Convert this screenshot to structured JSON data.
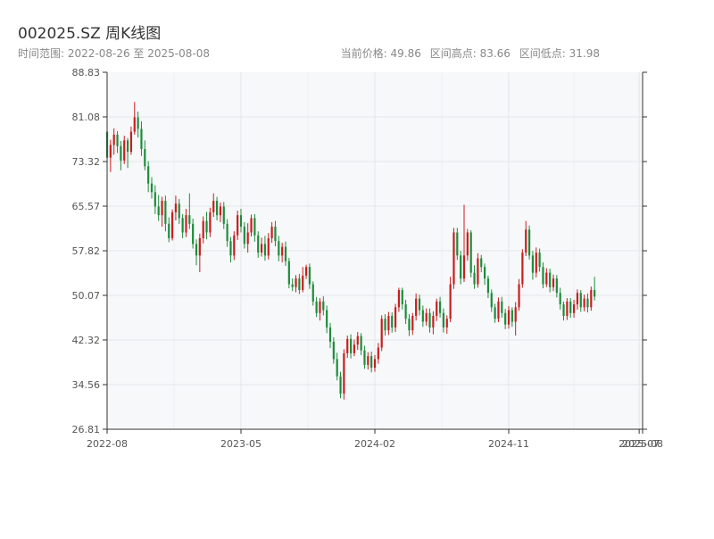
{
  "header": {
    "title": "002025.SZ 周K线图",
    "range_text": "时间范围: 2022-08-26 至 2025-08-08",
    "current_price": "当前价格: 49.86",
    "range_high": "区间高点: 83.66",
    "range_low": "区间低点: 31.98"
  },
  "chart_data": {
    "type": "candlestick",
    "title": "002025.SZ 周K线图",
    "ylim": [
      26.81,
      88.83
    ],
    "y_ticks": [
      "26.81",
      "34.56",
      "42.32",
      "50.07",
      "57.82",
      "65.57",
      "73.32",
      "81.08",
      "88.83"
    ],
    "x_ticks": [
      "2022-08",
      "2023-05",
      "2024-02",
      "2024-11",
      "2025-07",
      "2025-08"
    ],
    "x_tick_weeks": [
      0,
      39,
      78,
      117,
      155,
      156
    ],
    "up_color": "#c81e1e",
    "down_color": "#1e8c3c",
    "grid": true,
    "candles": [
      [
        78.5,
        74.0,
        79.2,
        72.5
      ],
      [
        74.0,
        76.2,
        77.1,
        71.5
      ],
      [
        76.2,
        78.0,
        79.1,
        74.5
      ],
      [
        78.0,
        76.0,
        78.6,
        74.8
      ],
      [
        76.0,
        73.5,
        76.9,
        71.8
      ],
      [
        73.5,
        77.0,
        77.8,
        72.9
      ],
      [
        77.0,
        75.0,
        77.4,
        72.2
      ],
      [
        75.0,
        78.5,
        79.4,
        74.5
      ],
      [
        78.5,
        81.0,
        83.66,
        78.0
      ],
      [
        81.0,
        79.0,
        82.0,
        77.5
      ],
      [
        79.0,
        75.5,
        80.3,
        74.3
      ],
      [
        75.5,
        72.5,
        77.0,
        71.8
      ],
      [
        72.5,
        69.5,
        73.4,
        68.0
      ],
      [
        69.5,
        68.0,
        70.6,
        66.9
      ],
      [
        68.0,
        65.5,
        69.2,
        64.2
      ],
      [
        65.5,
        64.0,
        67.5,
        63.0
      ],
      [
        64.0,
        66.5,
        67.2,
        62.0
      ],
      [
        66.5,
        62.5,
        67.4,
        61.2
      ],
      [
        62.5,
        60.0,
        63.6,
        59.3
      ],
      [
        60.0,
        64.5,
        65.0,
        59.6
      ],
      [
        64.5,
        66.0,
        67.4,
        63.1
      ],
      [
        66.0,
        63.5,
        66.8,
        62.5
      ],
      [
        63.5,
        61.0,
        64.2,
        60.0
      ],
      [
        61.0,
        64.0,
        65.1,
        60.2
      ],
      [
        64.0,
        62.5,
        67.8,
        61.6
      ],
      [
        62.5,
        59.0,
        63.4,
        58.2
      ],
      [
        59.0,
        57.0,
        59.8,
        55.3
      ],
      [
        57.0,
        60.0,
        60.8,
        54.1
      ],
      [
        60.0,
        63.0,
        63.8,
        59.1
      ],
      [
        63.0,
        61.0,
        64.6,
        59.8
      ],
      [
        61.0,
        64.5,
        65.3,
        60.2
      ],
      [
        64.5,
        66.5,
        67.8,
        63.7
      ],
      [
        66.5,
        64.0,
        67.2,
        63.1
      ],
      [
        64.0,
        65.5,
        66.2,
        62.8
      ],
      [
        65.5,
        62.5,
        66.3,
        61.6
      ],
      [
        62.5,
        59.5,
        63.3,
        58.5
      ],
      [
        59.5,
        57.0,
        60.2,
        55.8
      ],
      [
        57.0,
        60.5,
        61.2,
        56.2
      ],
      [
        60.5,
        64.0,
        64.8,
        59.7
      ],
      [
        64.0,
        62.0,
        65.1,
        61.0
      ],
      [
        62.0,
        59.0,
        62.8,
        58.2
      ],
      [
        59.0,
        61.0,
        62.6,
        57.5
      ],
      [
        61.0,
        63.5,
        64.1,
        60.3
      ],
      [
        63.5,
        60.5,
        64.2,
        59.4
      ],
      [
        60.5,
        57.5,
        61.2,
        56.6
      ],
      [
        57.5,
        59.0,
        60.1,
        56.8
      ],
      [
        59.0,
        57.0,
        60.4,
        56.1
      ],
      [
        57.0,
        60.0,
        60.9,
        56.3
      ],
      [
        60.0,
        62.0,
        62.8,
        59.2
      ],
      [
        62.0,
        59.5,
        63.0,
        58.6
      ],
      [
        59.5,
        57.0,
        60.4,
        56.0
      ],
      [
        57.0,
        58.5,
        59.2,
        55.8
      ],
      [
        58.5,
        56.0,
        59.4,
        55.2
      ],
      [
        56.0,
        52.0,
        56.6,
        51.3
      ],
      [
        52.0,
        51.5,
        53.0,
        50.8
      ],
      [
        51.5,
        53.0,
        53.6,
        50.6
      ],
      [
        53.0,
        51.0,
        53.8,
        50.3
      ],
      [
        51.0,
        53.5,
        55.0,
        50.6
      ],
      [
        53.5,
        55.0,
        55.4,
        52.9
      ],
      [
        55.0,
        52.0,
        55.6,
        51.2
      ],
      [
        52.0,
        49.0,
        52.5,
        48.3
      ],
      [
        49.0,
        47.0,
        49.8,
        46.3
      ],
      [
        47.0,
        49.0,
        49.6,
        45.7
      ],
      [
        49.0,
        47.5,
        49.9,
        46.6
      ],
      [
        47.5,
        44.5,
        48.3,
        43.5
      ],
      [
        44.5,
        42.0,
        45.3,
        40.9
      ],
      [
        42.0,
        39.0,
        42.8,
        38.2
      ],
      [
        39.0,
        36.0,
        40.1,
        35.3
      ],
      [
        36.0,
        33.0,
        36.8,
        32.2
      ],
      [
        33.0,
        40.0,
        40.7,
        31.98
      ],
      [
        40.0,
        42.5,
        43.1,
        39.2
      ],
      [
        42.5,
        40.0,
        43.3,
        39.1
      ],
      [
        40.0,
        41.5,
        42.4,
        39.5
      ],
      [
        41.5,
        43.0,
        43.7,
        40.6
      ],
      [
        43.0,
        40.5,
        43.5,
        39.7
      ],
      [
        40.5,
        38.0,
        41.3,
        37.3
      ],
      [
        38.0,
        39.5,
        40.2,
        37.2
      ],
      [
        39.5,
        37.5,
        40.3,
        36.7
      ],
      [
        37.5,
        39.0,
        39.7,
        36.8
      ],
      [
        39.0,
        41.0,
        41.8,
        38.2
      ],
      [
        41.0,
        46.0,
        46.6,
        40.4
      ],
      [
        46.0,
        44.0,
        46.8,
        43.1
      ],
      [
        44.0,
        46.5,
        47.2,
        43.2
      ],
      [
        46.5,
        44.5,
        47.1,
        43.6
      ],
      [
        44.5,
        48.0,
        48.6,
        43.7
      ],
      [
        48.0,
        51.0,
        51.4,
        47.2
      ],
      [
        51.0,
        48.5,
        51.4,
        47.6
      ],
      [
        48.5,
        46.0,
        49.3,
        45.1
      ],
      [
        46.0,
        44.0,
        46.8,
        43.0
      ],
      [
        44.0,
        46.5,
        47.0,
        43.2
      ],
      [
        46.5,
        49.5,
        50.4,
        45.7
      ],
      [
        49.5,
        47.5,
        50.2,
        46.6
      ],
      [
        47.5,
        45.5,
        48.3,
        44.6
      ],
      [
        45.5,
        47.0,
        47.8,
        44.8
      ],
      [
        47.0,
        44.5,
        47.8,
        43.6
      ],
      [
        44.5,
        46.5,
        47.3,
        43.3
      ],
      [
        46.5,
        49.0,
        49.5,
        45.6
      ],
      [
        49.0,
        47.0,
        49.8,
        46.2
      ],
      [
        47.0,
        44.5,
        47.8,
        43.6
      ],
      [
        44.5,
        46.0,
        46.6,
        43.4
      ],
      [
        46.0,
        52.0,
        53.3,
        45.4
      ],
      [
        52.0,
        61.0,
        61.8,
        51.2
      ],
      [
        61.0,
        57.0,
        61.8,
        56.2
      ],
      [
        57.0,
        53.0,
        57.8,
        52.0
      ],
      [
        53.0,
        57.0,
        65.8,
        52.4
      ],
      [
        57.0,
        61.0,
        61.6,
        56.1
      ],
      [
        61.0,
        54.0,
        61.4,
        53.2
      ],
      [
        54.0,
        52.0,
        55.3,
        51.2
      ],
      [
        52.0,
        56.5,
        57.4,
        51.4
      ],
      [
        56.5,
        55.0,
        57.1,
        54.1
      ],
      [
        55.0,
        53.0,
        55.6,
        51.9
      ],
      [
        53.0,
        50.5,
        53.5,
        49.6
      ],
      [
        50.5,
        48.0,
        51.1,
        47.2
      ],
      [
        48.0,
        46.0,
        48.6,
        45.3
      ],
      [
        46.0,
        49.0,
        49.7,
        45.4
      ],
      [
        49.0,
        47.0,
        49.8,
        46.2
      ],
      [
        47.0,
        45.0,
        47.7,
        44.2
      ],
      [
        45.0,
        47.5,
        48.2,
        44.3
      ],
      [
        47.5,
        45.5,
        48.0,
        44.6
      ],
      [
        45.5,
        48.0,
        48.9,
        43.1
      ],
      [
        48.0,
        52.0,
        52.9,
        47.4
      ],
      [
        52.0,
        57.5,
        58.1,
        51.4
      ],
      [
        57.5,
        61.5,
        63.0,
        56.9
      ],
      [
        61.5,
        57.0,
        62.2,
        56.3
      ],
      [
        57.0,
        54.0,
        57.8,
        52.8
      ],
      [
        54.0,
        57.5,
        58.4,
        53.2
      ],
      [
        57.5,
        55.0,
        58.2,
        54.2
      ],
      [
        55.0,
        52.0,
        55.8,
        51.3
      ],
      [
        52.0,
        54.0,
        54.8,
        51.5
      ],
      [
        54.0,
        51.5,
        54.7,
        50.6
      ],
      [
        51.5,
        53.0,
        53.7,
        50.8
      ],
      [
        53.0,
        50.5,
        53.6,
        49.7
      ],
      [
        50.5,
        48.5,
        51.4,
        47.6
      ],
      [
        48.5,
        46.5,
        49.0,
        45.7
      ],
      [
        46.5,
        49.0,
        49.6,
        45.8
      ],
      [
        49.0,
        47.0,
        49.6,
        46.2
      ],
      [
        47.0,
        48.5,
        49.3,
        46.2
      ],
      [
        48.5,
        50.5,
        51.1,
        47.6
      ],
      [
        50.5,
        48.0,
        51.0,
        47.2
      ],
      [
        48.0,
        49.5,
        50.2,
        47.3
      ],
      [
        49.5,
        48.0,
        50.4,
        47.1
      ],
      [
        48.0,
        51.0,
        51.6,
        47.4
      ],
      [
        51.0,
        49.86,
        53.3,
        49.2
      ]
    ]
  }
}
